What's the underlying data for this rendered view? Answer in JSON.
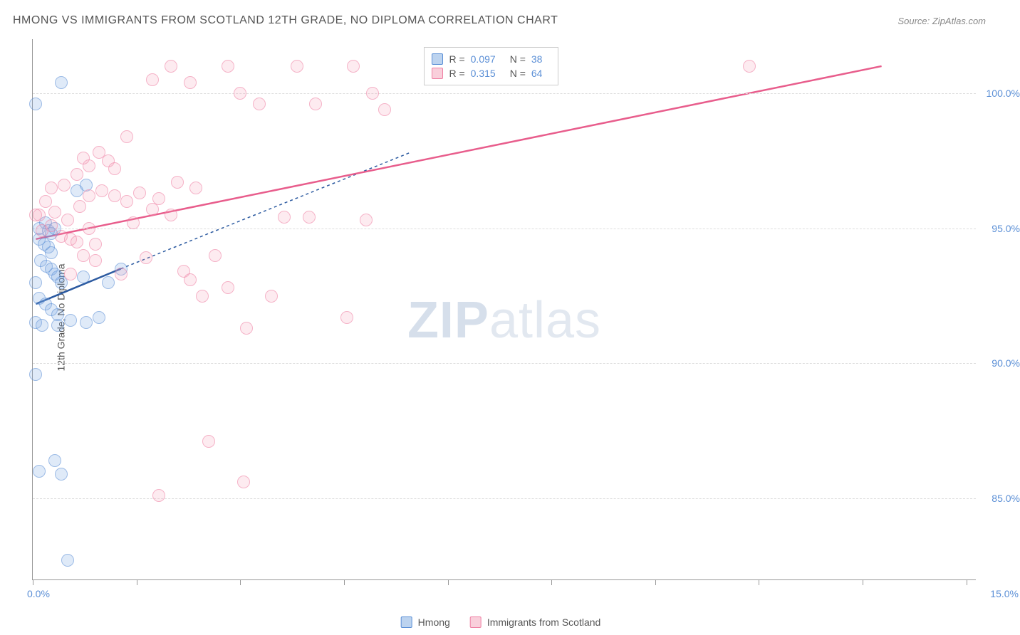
{
  "title": "HMONG VS IMMIGRANTS FROM SCOTLAND 12TH GRADE, NO DIPLOMA CORRELATION CHART",
  "source": "Source: ZipAtlas.com",
  "ylabel": "12th Grade, No Diploma",
  "watermark_a": "ZIP",
  "watermark_b": "atlas",
  "chart": {
    "type": "scatter",
    "xlim": [
      0,
      15
    ],
    "ylim": [
      82,
      102
    ],
    "yticks": [
      85.0,
      90.0,
      95.0,
      100.0
    ],
    "ytick_labels": [
      "85.0%",
      "90.0%",
      "95.0%",
      "100.0%"
    ],
    "xtick_positions": [
      0,
      1.65,
      3.3,
      4.95,
      6.6,
      8.25,
      9.9,
      11.55,
      13.2,
      14.85
    ],
    "xmin_label": "0.0%",
    "xmax_label": "15.0%",
    "background_color": "#ffffff",
    "grid_color": "#dddddd",
    "series": [
      {
        "name": "Hmong",
        "color_fill": "rgba(122,168,224,0.4)",
        "color_stroke": "#5b8fd6",
        "class": "pt-blue",
        "R": "0.097",
        "N": "38",
        "trend": {
          "x1": 0.05,
          "y1": 92.2,
          "x2": 1.4,
          "y2": 93.5,
          "dash_x2": 6.0,
          "dash_y2": 97.8,
          "stroke": "#2c5aa0",
          "width": 2.5
        },
        "points": [
          [
            0.05,
            99.6
          ],
          [
            0.45,
            100.4
          ],
          [
            0.1,
            86.0
          ],
          [
            0.35,
            86.4
          ],
          [
            0.45,
            85.9
          ],
          [
            0.55,
            82.7
          ],
          [
            0.05,
            91.5
          ],
          [
            0.15,
            91.4
          ],
          [
            0.4,
            91.4
          ],
          [
            0.05,
            89.6
          ],
          [
            0.7,
            96.4
          ],
          [
            0.85,
            96.6
          ],
          [
            0.1,
            95.0
          ],
          [
            0.2,
            95.2
          ],
          [
            0.25,
            94.9
          ],
          [
            0.3,
            94.8
          ],
          [
            0.35,
            95.0
          ],
          [
            0.1,
            94.6
          ],
          [
            0.18,
            94.4
          ],
          [
            0.25,
            94.3
          ],
          [
            0.3,
            94.1
          ],
          [
            0.12,
            93.8
          ],
          [
            0.22,
            93.6
          ],
          [
            0.3,
            93.5
          ],
          [
            0.35,
            93.3
          ],
          [
            0.4,
            93.2
          ],
          [
            0.45,
            93.0
          ],
          [
            0.1,
            92.4
          ],
          [
            0.2,
            92.2
          ],
          [
            0.3,
            92.0
          ],
          [
            0.4,
            91.8
          ],
          [
            0.6,
            91.6
          ],
          [
            0.85,
            91.5
          ],
          [
            1.05,
            91.7
          ],
          [
            0.8,
            93.2
          ],
          [
            1.2,
            93.0
          ],
          [
            1.4,
            93.5
          ],
          [
            0.05,
            93.0
          ]
        ]
      },
      {
        "name": "Immigrants from Scotland",
        "color_fill": "rgba(244,160,184,0.35)",
        "color_stroke": "#ef7fa3",
        "class": "pt-pink",
        "R": "0.315",
        "N": "64",
        "trend": {
          "x1": 0.05,
          "y1": 94.6,
          "x2": 13.5,
          "y2": 101.0,
          "stroke": "#e85d8c",
          "width": 2.5
        },
        "points": [
          [
            0.15,
            94.9
          ],
          [
            0.3,
            95.1
          ],
          [
            0.45,
            94.7
          ],
          [
            0.6,
            94.6
          ],
          [
            0.7,
            94.5
          ],
          [
            0.9,
            95.0
          ],
          [
            0.1,
            95.5
          ],
          [
            0.35,
            95.6
          ],
          [
            0.55,
            95.3
          ],
          [
            0.75,
            95.8
          ],
          [
            0.9,
            96.2
          ],
          [
            1.1,
            96.4
          ],
          [
            1.3,
            96.2
          ],
          [
            1.5,
            96.0
          ],
          [
            1.7,
            96.3
          ],
          [
            1.9,
            95.7
          ],
          [
            2.0,
            96.1
          ],
          [
            1.0,
            93.8
          ],
          [
            1.4,
            93.3
          ],
          [
            1.8,
            93.9
          ],
          [
            2.4,
            93.4
          ],
          [
            2.5,
            93.1
          ],
          [
            2.9,
            94.0
          ],
          [
            2.7,
            92.5
          ],
          [
            3.1,
            92.8
          ],
          [
            3.4,
            91.3
          ],
          [
            0.7,
            97.0
          ],
          [
            0.9,
            97.3
          ],
          [
            0.8,
            97.6
          ],
          [
            1.2,
            97.5
          ],
          [
            1.05,
            97.8
          ],
          [
            1.3,
            97.2
          ],
          [
            1.5,
            98.4
          ],
          [
            1.9,
            100.5
          ],
          [
            2.2,
            101.0
          ],
          [
            2.5,
            100.4
          ],
          [
            3.1,
            101.0
          ],
          [
            3.3,
            100.0
          ],
          [
            3.6,
            99.6
          ],
          [
            4.2,
            101.0
          ],
          [
            4.5,
            99.6
          ],
          [
            5.1,
            101.0
          ],
          [
            5.4,
            100.0
          ],
          [
            5.6,
            99.4
          ],
          [
            3.8,
            92.5
          ],
          [
            4.0,
            95.4
          ],
          [
            4.4,
            95.4
          ],
          [
            5.0,
            91.7
          ],
          [
            2.0,
            85.1
          ],
          [
            2.8,
            87.1
          ],
          [
            3.35,
            85.6
          ],
          [
            5.3,
            95.3
          ],
          [
            11.4,
            101.0
          ],
          [
            0.3,
            96.5
          ],
          [
            0.5,
            96.6
          ],
          [
            0.6,
            93.3
          ],
          [
            1.0,
            94.4
          ],
          [
            1.6,
            95.2
          ],
          [
            2.2,
            95.5
          ],
          [
            2.3,
            96.7
          ],
          [
            2.6,
            96.5
          ],
          [
            0.05,
            95.5
          ],
          [
            0.8,
            94.0
          ],
          [
            0.2,
            96.0
          ]
        ]
      }
    ],
    "stat_box": {
      "left_pct": 41.5,
      "top_pct": 1.5
    },
    "legend_labels": {
      "a": "Hmong",
      "b": "Immigrants from Scotland"
    }
  }
}
